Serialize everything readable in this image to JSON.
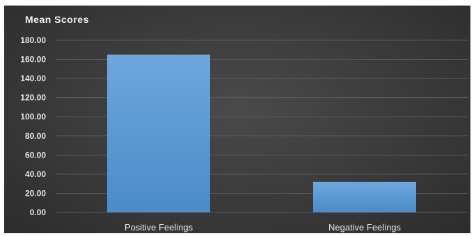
{
  "chart_data": {
    "type": "bar",
    "title": "Mean Scores",
    "categories": [
      "Positive Feelings",
      "Negative Feelings"
    ],
    "values": [
      165,
      32
    ],
    "ylim": [
      0,
      180
    ],
    "yticks": [
      "0.00",
      "20.00",
      "40.00",
      "60.00",
      "80.00",
      "100.00",
      "120.00",
      "140.00",
      "160.00",
      "180.00"
    ],
    "grid": true,
    "legend": "none",
    "colors": {
      "bar": "#5b9bd5",
      "bar_top": "#6ea7dc",
      "background": "#404040",
      "text": "#e6e6e6"
    }
  }
}
